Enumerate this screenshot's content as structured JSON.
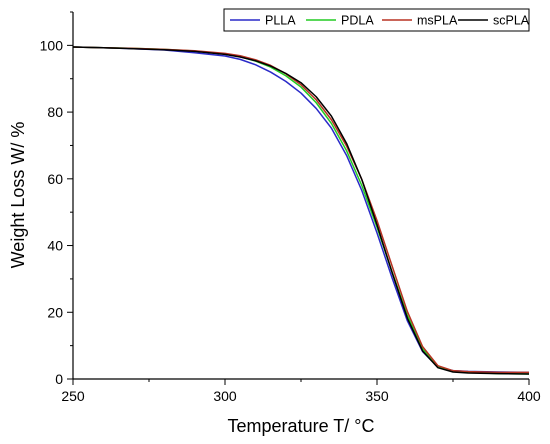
{
  "chart_data": {
    "type": "line",
    "title": "",
    "xlabel": "Temperature T/ °C",
    "ylabel": "Weight Loss W/ %",
    "xlim": [
      250,
      400
    ],
    "ylim": [
      0,
      110
    ],
    "x_ticks": [
      250,
      300,
      350,
      400
    ],
    "y_ticks": [
      0,
      20,
      40,
      60,
      80,
      100
    ],
    "x_tick_labels": [
      "250",
      "300",
      "350",
      "400"
    ],
    "y_tick_labels": [
      "0",
      "20",
      "40",
      "60",
      "80",
      "100"
    ],
    "grid": false,
    "legend_position": "top-right",
    "series": [
      {
        "name": "PLLA",
        "color": "#2a2ac8",
        "points": [
          [
            250,
            99.5
          ],
          [
            260,
            99.3
          ],
          [
            270,
            99.0
          ],
          [
            280,
            98.6
          ],
          [
            290,
            97.8
          ],
          [
            300,
            96.8
          ],
          [
            305,
            95.8
          ],
          [
            310,
            94.2
          ],
          [
            315,
            92.0
          ],
          [
            320,
            89.2
          ],
          [
            325,
            85.7
          ],
          [
            330,
            81.1
          ],
          [
            335,
            75.2
          ],
          [
            340,
            67.0
          ],
          [
            345,
            56.5
          ],
          [
            350,
            43.8
          ],
          [
            355,
            30.2
          ],
          [
            360,
            17.4
          ],
          [
            365,
            8.2
          ],
          [
            370,
            3.6
          ],
          [
            375,
            2.5
          ],
          [
            380,
            2.3
          ],
          [
            390,
            2.1
          ],
          [
            400,
            2.0
          ]
        ]
      },
      {
        "name": "PDLA",
        "color": "#22cc22",
        "points": [
          [
            250,
            99.5
          ],
          [
            260,
            99.3
          ],
          [
            270,
            99.1
          ],
          [
            280,
            98.8
          ],
          [
            290,
            98.3
          ],
          [
            300,
            97.4
          ],
          [
            305,
            96.6
          ],
          [
            310,
            95.3
          ],
          [
            315,
            93.5
          ],
          [
            320,
            90.9
          ],
          [
            325,
            87.5
          ],
          [
            330,
            82.8
          ],
          [
            335,
            76.6
          ],
          [
            340,
            68.4
          ],
          [
            345,
            58.0
          ],
          [
            350,
            45.5
          ],
          [
            355,
            32.0
          ],
          [
            360,
            19.0
          ],
          [
            365,
            9.0
          ],
          [
            370,
            3.8
          ],
          [
            375,
            2.3
          ],
          [
            380,
            2.0
          ],
          [
            390,
            1.6
          ],
          [
            400,
            1.5
          ]
        ]
      },
      {
        "name": "msPLA",
        "color": "#b83222",
        "points": [
          [
            250,
            99.5
          ],
          [
            260,
            99.3
          ],
          [
            270,
            99.1
          ],
          [
            280,
            98.8
          ],
          [
            290,
            98.4
          ],
          [
            300,
            97.6
          ],
          [
            305,
            96.9
          ],
          [
            310,
            95.7
          ],
          [
            315,
            94.0
          ],
          [
            320,
            91.5
          ],
          [
            325,
            88.2
          ],
          [
            330,
            83.7
          ],
          [
            335,
            77.7
          ],
          [
            340,
            69.8
          ],
          [
            345,
            59.8
          ],
          [
            350,
            47.5
          ],
          [
            355,
            33.8
          ],
          [
            360,
            20.2
          ],
          [
            365,
            9.7
          ],
          [
            370,
            4.0
          ],
          [
            375,
            2.5
          ],
          [
            380,
            2.2
          ],
          [
            390,
            2.0
          ],
          [
            400,
            2.0
          ]
        ]
      },
      {
        "name": "scPLA",
        "color": "#000000",
        "points": [
          [
            250,
            99.5
          ],
          [
            260,
            99.3
          ],
          [
            270,
            99.0
          ],
          [
            280,
            98.7
          ],
          [
            290,
            98.2
          ],
          [
            300,
            97.3
          ],
          [
            305,
            96.5
          ],
          [
            310,
            95.4
          ],
          [
            315,
            93.8
          ],
          [
            320,
            91.6
          ],
          [
            325,
            88.8
          ],
          [
            330,
            84.6
          ],
          [
            335,
            78.8
          ],
          [
            340,
            70.6
          ],
          [
            345,
            59.8
          ],
          [
            350,
            46.2
          ],
          [
            355,
            31.8
          ],
          [
            360,
            18.2
          ],
          [
            365,
            8.4
          ],
          [
            370,
            3.4
          ],
          [
            375,
            2.1
          ],
          [
            380,
            1.8
          ],
          [
            390,
            1.6
          ],
          [
            400,
            1.5
          ]
        ]
      }
    ]
  }
}
